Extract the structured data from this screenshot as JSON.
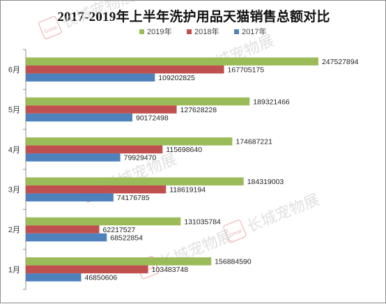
{
  "watermark": {
    "text": "长城宠物展",
    "logo_text": "Great Wall Pet Show",
    "color": "#c8c8c8",
    "logo_color": "#e06a6a"
  },
  "chart_data": {
    "type": "bar",
    "orientation": "horizontal",
    "title": "2017-2019年上半年洗护用品天猫销售总额对比",
    "categories": [
      "1月",
      "2月",
      "3月",
      "4月",
      "5月",
      "6月"
    ],
    "series": [
      {
        "name": "2019年",
        "color": "#9bbb59",
        "values": [
          156884590,
          131035784,
          184319003,
          174687221,
          189321466,
          247527894
        ]
      },
      {
        "name": "2018年",
        "color": "#c0504d",
        "values": [
          103483748,
          62217527,
          118619194,
          115698640,
          127628228,
          167705175
        ]
      },
      {
        "name": "2017年",
        "color": "#4f81bd",
        "values": [
          46850606,
          68522854,
          74176785,
          79929470,
          90172498,
          109202825
        ]
      }
    ],
    "legend_position": "top",
    "xlim": [
      0,
      300000000
    ],
    "x_axis_visible": false,
    "grid": false
  }
}
